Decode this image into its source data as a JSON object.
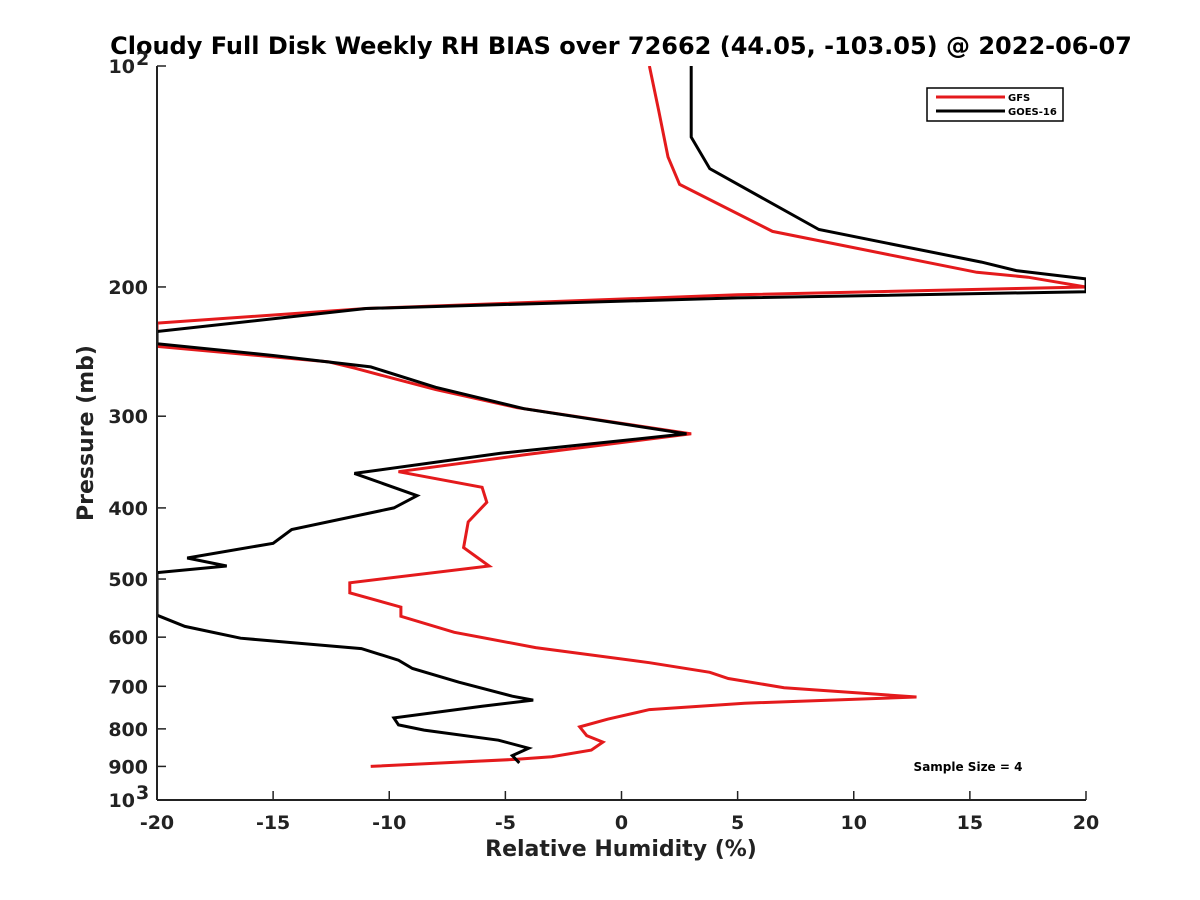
{
  "chart_data": {
    "type": "line",
    "title": "Cloudy Full Disk Weekly RH BIAS over 72662 (44.05, -103.05) @ 2022-06-07",
    "xlabel": "Relative Humidity (%)",
    "ylabel": "Pressure (mb)",
    "xlim": [
      -20,
      20
    ],
    "ylim": [
      1000,
      100
    ],
    "y_scale": "log",
    "y_reversed": true,
    "x_ticks": [
      {
        "value": -20,
        "label": "-20"
      },
      {
        "value": -15,
        "label": "-15"
      },
      {
        "value": -10,
        "label": "-10"
      },
      {
        "value": -5,
        "label": "-5"
      },
      {
        "value": 0,
        "label": "0"
      },
      {
        "value": 5,
        "label": "5"
      },
      {
        "value": 10,
        "label": "10"
      },
      {
        "value": 15,
        "label": "15"
      },
      {
        "value": 20,
        "label": "20"
      }
    ],
    "y_ticks": [
      {
        "value": 100,
        "label": "10",
        "exp": "2"
      },
      {
        "value": 200,
        "label": "200"
      },
      {
        "value": 300,
        "label": "300"
      },
      {
        "value": 400,
        "label": "400"
      },
      {
        "value": 500,
        "label": "500"
      },
      {
        "value": 600,
        "label": "600"
      },
      {
        "value": 700,
        "label": "700"
      },
      {
        "value": 800,
        "label": "800"
      },
      {
        "value": 900,
        "label": "900"
      },
      {
        "value": 1000,
        "label": "10",
        "exp": "3"
      }
    ],
    "legend_position": "top-right",
    "grid": false,
    "annotation": "Sample Size = 4",
    "series": [
      {
        "name": "GFS",
        "color": "#e41a1c",
        "points": [
          [
            1.2,
            100
          ],
          [
            1.6,
            115
          ],
          [
            2.0,
            133
          ],
          [
            2.5,
            145
          ],
          [
            6.5,
            168
          ],
          [
            15.3,
            191
          ],
          [
            17.5,
            194
          ],
          [
            20,
            200
          ],
          [
            17.0,
            201
          ],
          [
            5.0,
            205
          ],
          [
            -11.0,
            214
          ],
          [
            -20,
            224
          ],
          [
            -20,
            241
          ],
          [
            -12.6,
            253
          ],
          [
            -11.5,
            258
          ],
          [
            -8.0,
            276
          ],
          [
            -4.5,
            292
          ],
          [
            3.0,
            317
          ],
          [
            -4.0,
            338
          ],
          [
            -9.6,
            357
          ],
          [
            -6.0,
            375
          ],
          [
            -5.8,
            393
          ],
          [
            -6.6,
            418
          ],
          [
            -6.8,
            453
          ],
          [
            -5.7,
            480
          ],
          [
            -11.7,
            506
          ],
          [
            -11.7,
            522
          ],
          [
            -9.5,
            546
          ],
          [
            -9.5,
            562
          ],
          [
            -7.2,
            591
          ],
          [
            -3.7,
            620
          ],
          [
            1.2,
            650
          ],
          [
            3.8,
            670
          ],
          [
            4.6,
            683
          ],
          [
            7.0,
            703
          ],
          [
            12.7,
            724
          ],
          [
            5.3,
            738
          ],
          [
            1.2,
            753
          ],
          [
            -0.6,
            776
          ],
          [
            -1.8,
            795
          ],
          [
            -1.5,
            817
          ],
          [
            -0.8,
            834
          ],
          [
            -1.3,
            855
          ],
          [
            -3.0,
            873
          ],
          [
            -4.5,
            880
          ],
          [
            -10.8,
            900
          ]
        ]
      },
      {
        "name": "GOES-16",
        "color": "#000000",
        "points": [
          [
            3.0,
            100
          ],
          [
            3.0,
            110
          ],
          [
            3.0,
            125
          ],
          [
            3.8,
            138
          ],
          [
            8.5,
            167
          ],
          [
            15.5,
            185
          ],
          [
            17.0,
            190
          ],
          [
            20,
            195
          ],
          [
            20,
            203
          ],
          [
            5.0,
            207
          ],
          [
            -11.0,
            214
          ],
          [
            -20,
            230
          ],
          [
            -20,
            239
          ],
          [
            -15.0,
            248
          ],
          [
            -10.8,
            257
          ],
          [
            -8.0,
            274
          ],
          [
            -4.2,
            293
          ],
          [
            2.8,
            317
          ],
          [
            -5.2,
            337
          ],
          [
            -11.5,
            359
          ],
          [
            -8.8,
            385
          ],
          [
            -9.8,
            400
          ],
          [
            -14.2,
            428
          ],
          [
            -15.0,
            447
          ],
          [
            -18.7,
            468
          ],
          [
            -17.0,
            480
          ],
          [
            -20,
            490
          ],
          [
            -20,
            560
          ],
          [
            -18.8,
            580
          ],
          [
            -16.4,
            602
          ],
          [
            -11.2,
            622
          ],
          [
            -9.6,
            645
          ],
          [
            -9.0,
            662
          ],
          [
            -7.0,
            691
          ],
          [
            -4.7,
            722
          ],
          [
            -3.8,
            731
          ],
          [
            -6.0,
            745
          ],
          [
            -9.8,
            773
          ],
          [
            -9.6,
            790
          ],
          [
            -8.5,
            803
          ],
          [
            -5.3,
            829
          ],
          [
            -4.0,
            850
          ],
          [
            -4.7,
            870
          ],
          [
            -4.4,
            890
          ]
        ]
      }
    ]
  }
}
